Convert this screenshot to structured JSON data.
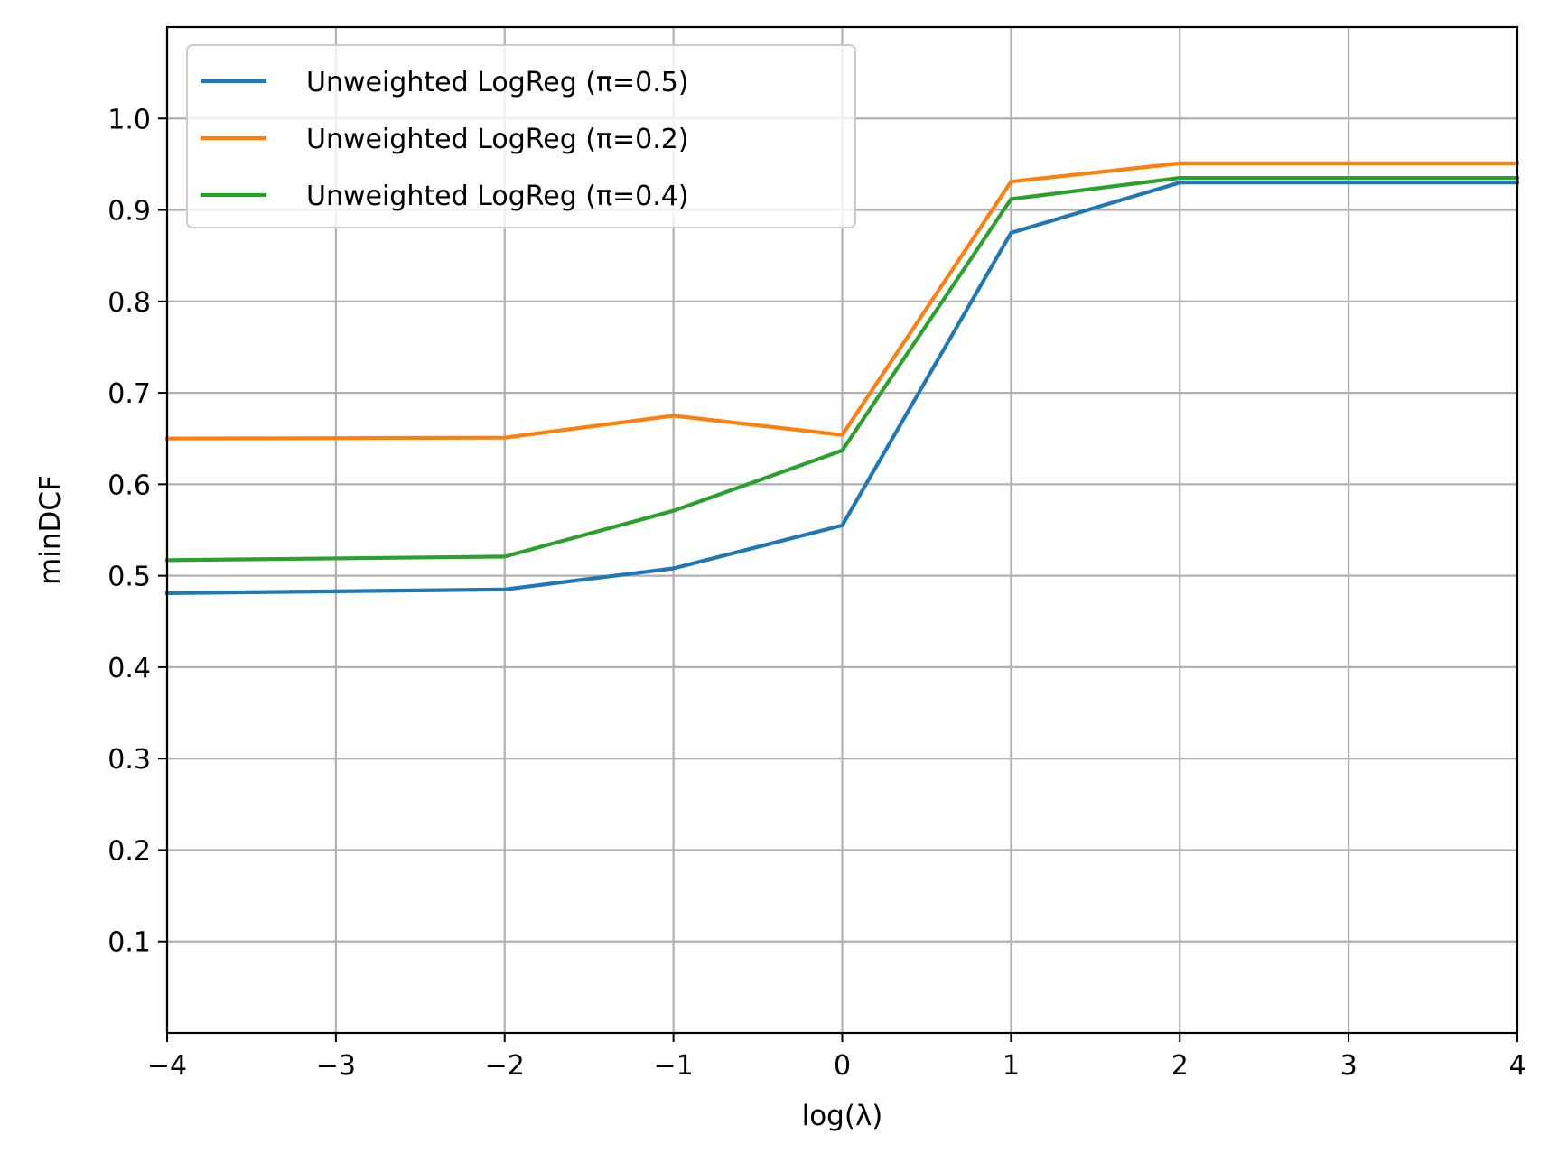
{
  "chart_data": {
    "type": "line",
    "title": "",
    "xlabel": "log(λ)",
    "ylabel": "minDCF",
    "xlim": [
      -4,
      4
    ],
    "ylim": [
      0.0,
      1.1
    ],
    "x_ticks": [
      -4,
      -3,
      -2,
      -1,
      0,
      1,
      2,
      3,
      4
    ],
    "x_tick_labels": [
      "−4",
      "−3",
      "−2",
      "−1",
      "0",
      "1",
      "2",
      "3",
      "4"
    ],
    "y_ticks": [
      0.1,
      0.2,
      0.3,
      0.4,
      0.5,
      0.6,
      0.7,
      0.8,
      0.9,
      1.0
    ],
    "y_tick_labels": [
      "0.1",
      "0.2",
      "0.3",
      "0.4",
      "0.5",
      "0.6",
      "0.7",
      "0.8",
      "0.9",
      "1.0"
    ],
    "grid": true,
    "legend_position": "top-left",
    "x": [
      -4,
      -2,
      -1,
      0,
      1,
      2,
      4
    ],
    "series": [
      {
        "name": "Unweighted LogReg (π=0.5)",
        "color": "#1f77b4",
        "values": [
          0.481,
          0.485,
          0.508,
          0.555,
          0.875,
          0.93,
          0.93
        ]
      },
      {
        "name": "Unweighted LogReg (π=0.2)",
        "color": "#ff7f0e",
        "values": [
          0.65,
          0.651,
          0.675,
          0.654,
          0.931,
          0.951,
          0.951
        ]
      },
      {
        "name": "Unweighted LogReg (π=0.4)",
        "color": "#2ca02c",
        "values": [
          0.517,
          0.521,
          0.571,
          0.637,
          0.912,
          0.935,
          0.935
        ]
      }
    ]
  }
}
